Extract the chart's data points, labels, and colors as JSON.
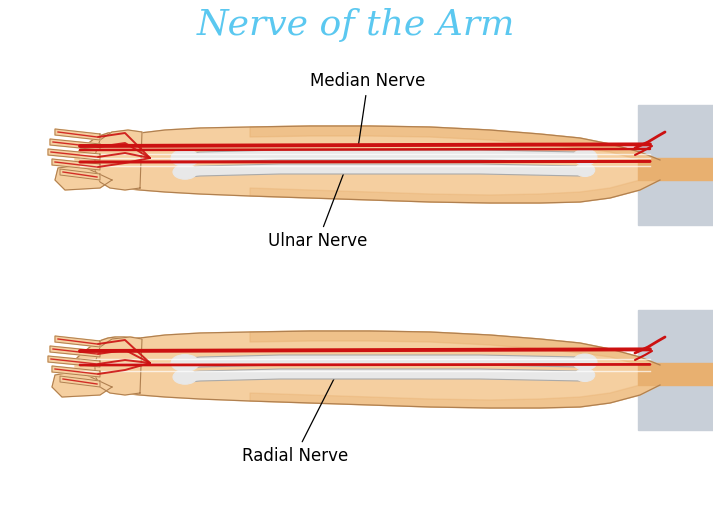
{
  "title": "Nerve of the Arm",
  "title_color": "#5bc8f0",
  "title_fontsize": 26,
  "label_median": "Median Nerve",
  "label_ulnar": "Ulnar Nerve",
  "label_radial": "Radial Nerve",
  "label_fontsize": 12,
  "skin_color": "#f5cfa0",
  "skin_dark": "#e8b070",
  "skin_darker": "#d4956a",
  "bone_color": "#e8e8e8",
  "bone_outline": "#aaaaaa",
  "nerve_red": "#cc1111",
  "bg_color": "#ffffff",
  "gray_area": "#c8cfd8",
  "outline_color": "#b08050"
}
